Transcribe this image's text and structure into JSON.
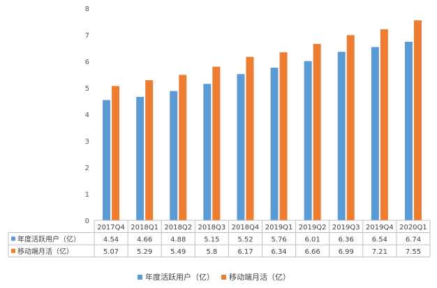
{
  "chart_data": {
    "type": "bar",
    "categories": [
      "2017Q4",
      "2018Q1",
      "2018Q2",
      "2018Q3",
      "2018Q4",
      "2019Q1",
      "2019Q2",
      "2019Q3",
      "2019Q4",
      "2020Q1"
    ],
    "series": [
      {
        "name": "年度活跃用户（亿）",
        "values": [
          4.54,
          4.66,
          4.88,
          5.15,
          5.52,
          5.76,
          6.01,
          6.36,
          6.54,
          6.74
        ],
        "labels": [
          "4.54",
          "4.66",
          "4.88",
          "5.15",
          "5.52",
          "5.76",
          "6.01",
          "6.36",
          "6.54",
          "6.74"
        ],
        "color": "#5B9BD5"
      },
      {
        "name": "移动端月活（亿）",
        "values": [
          5.07,
          5.29,
          5.49,
          5.8,
          6.17,
          6.34,
          6.66,
          6.99,
          7.21,
          7.55
        ],
        "labels": [
          "5.07",
          "5.29",
          "5.49",
          "5.8",
          "6.17",
          "6.34",
          "6.66",
          "6.99",
          "7.21",
          "7.55"
        ],
        "color": "#ED7D31"
      }
    ],
    "ylim": [
      0,
      8
    ],
    "yticks": [
      "0",
      "1",
      "2",
      "3",
      "4",
      "5",
      "6",
      "7",
      "8"
    ],
    "grid": false,
    "legend": "bottom",
    "data_table": true
  }
}
